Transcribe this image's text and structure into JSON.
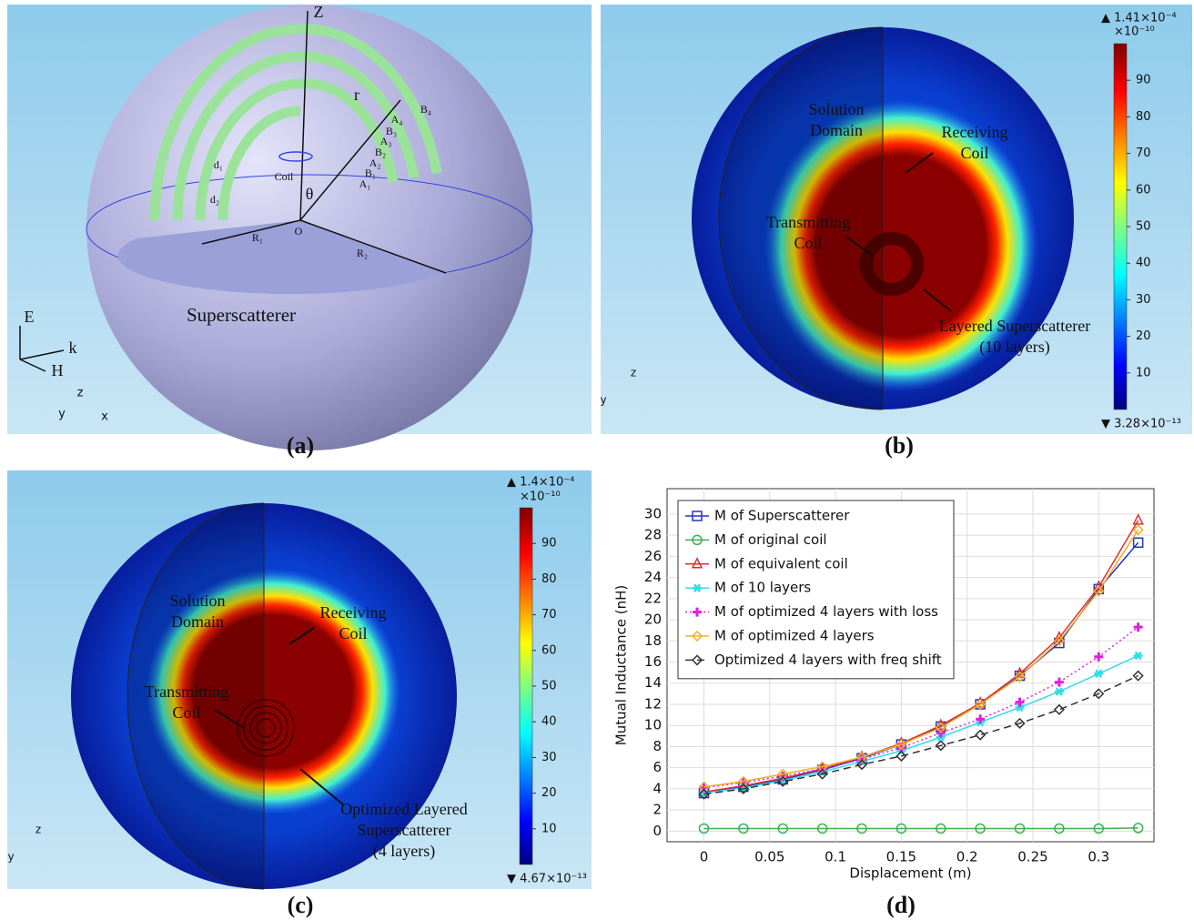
{
  "panels": [
    {
      "caption": "(a)",
      "labels": {
        "z": "Z",
        "r": "r",
        "theta": "θ",
        "o": "O",
        "coil": "Coil",
        "d1": "d₁",
        "d2": "d₂",
        "r1": "R₁",
        "r2": "R₂",
        "b4": "B₄",
        "a4": "A₄",
        "b3": "B₃",
        "a3": "A₃",
        "b2": "B₂",
        "a2": "A₂",
        "b1": "B₁",
        "a1": "A₁",
        "superscatterer": "Superscatterer",
        "e": "E",
        "k": "k",
        "h": "H",
        "axis_z": "z",
        "axis_y": "y",
        "axis_x": "x"
      }
    },
    {
      "caption": "(b)",
      "labels": {
        "solution": [
          "Solution",
          "Domain"
        ],
        "receiving": [
          "Receiving",
          "Coil"
        ],
        "transmitting": [
          "Transmitting",
          "Coil"
        ],
        "layered": [
          "Layered Superscatterer",
          "(10 layers)"
        ],
        "axis_z": "z",
        "axis_y": "y"
      },
      "colorbar": {
        "max_label": "▲ 1.41×10⁻⁴",
        "unit": "×10⁻¹⁰",
        "min_label": "▼ 3.28×10⁻¹³",
        "lim": [
          0,
          100
        ],
        "ticks": [
          10,
          20,
          30,
          40,
          50,
          60,
          70,
          80,
          90
        ]
      }
    },
    {
      "caption": "(c)",
      "labels": {
        "solution": [
          "Solution",
          "Domain"
        ],
        "receiving": [
          "Receiving",
          "Coil"
        ],
        "transmitting": [
          "Transmitting",
          "Coil"
        ],
        "optimized": [
          "Optimized Layered",
          "Superscatterer",
          "(4 layers)"
        ],
        "axis_z": "z",
        "axis_y": "y"
      },
      "colorbar": {
        "max_label": "▲ 1.4×10⁻⁴",
        "unit": "×10⁻¹⁰",
        "min_label": "▼ 4.67×10⁻¹³",
        "lim": [
          0,
          100
        ],
        "ticks": [
          10,
          20,
          30,
          40,
          50,
          60,
          70,
          80,
          90
        ]
      }
    },
    {
      "caption": "(d)"
    }
  ],
  "chart_data": {
    "type": "line",
    "x_label": "Displacement (m)",
    "y_label": "Mutual Inductance (nH)",
    "x": [
      0,
      0.03,
      0.06,
      0.09,
      0.12,
      0.15,
      0.18,
      0.21,
      0.24,
      0.27,
      0.3,
      0.33
    ],
    "xlim": [
      -0.028,
      0.342
    ],
    "xticks": [
      0,
      0.05,
      0.1,
      0.15,
      0.2,
      0.25,
      0.3
    ],
    "ylim": [
      -1,
      32.4
    ],
    "yticks": [
      0,
      2,
      4,
      6,
      8,
      10,
      12,
      14,
      16,
      18,
      20,
      22,
      24,
      26,
      28,
      30
    ],
    "grid": true,
    "legend": "upper left",
    "series": [
      {
        "name": "M of Superscatterer",
        "color": "#2233cc",
        "marker": "square",
        "dash": "solid",
        "values": [
          3.6,
          4.2,
          4.9,
          5.8,
          6.9,
          8.2,
          9.9,
          12.0,
          14.7,
          17.8,
          22.9,
          27.3
        ]
      },
      {
        "name": "M of original coil",
        "color": "#3cb050",
        "marker": "circle",
        "dash": "solid",
        "values": [
          0.25,
          0.25,
          0.25,
          0.25,
          0.25,
          0.25,
          0.25,
          0.25,
          0.25,
          0.25,
          0.25,
          0.3
        ]
      },
      {
        "name": "M of equivalent coil",
        "color": "#e03030",
        "marker": "triangle",
        "dash": "solid",
        "values": [
          3.7,
          4.3,
          5.0,
          5.9,
          7.0,
          8.3,
          10.0,
          12.1,
          14.9,
          18.3,
          23.1,
          29.4
        ]
      },
      {
        "name": "M of 10 layers",
        "color": "#30dde8",
        "marker": "star",
        "dash": "solid",
        "values": [
          3.6,
          4.1,
          4.8,
          5.6,
          6.6,
          7.6,
          8.9,
          10.3,
          11.7,
          13.2,
          14.9,
          16.6
        ]
      },
      {
        "name": "M of optimized 4 layers with loss",
        "color": "#e020e0",
        "marker": "plus",
        "dash": "dotted",
        "values": [
          4.1,
          4.6,
          5.2,
          5.9,
          6.8,
          7.9,
          9.3,
          10.6,
          12.2,
          14.1,
          16.5,
          19.3
        ]
      },
      {
        "name": "M of optimized 4 layers",
        "color": "#f0b020",
        "marker": "diamond",
        "dash": "solid",
        "values": [
          4.2,
          4.7,
          5.4,
          6.1,
          7.0,
          8.2,
          9.8,
          12.0,
          14.6,
          18.0,
          22.7,
          28.5
        ]
      },
      {
        "name": "Optimized 4 layers with freq shift",
        "color": "#333333",
        "marker": "diamond",
        "dash": "dashed",
        "values": [
          3.5,
          4.0,
          4.7,
          5.4,
          6.3,
          7.1,
          8.1,
          9.1,
          10.2,
          11.5,
          13.0,
          14.7
        ]
      }
    ]
  }
}
